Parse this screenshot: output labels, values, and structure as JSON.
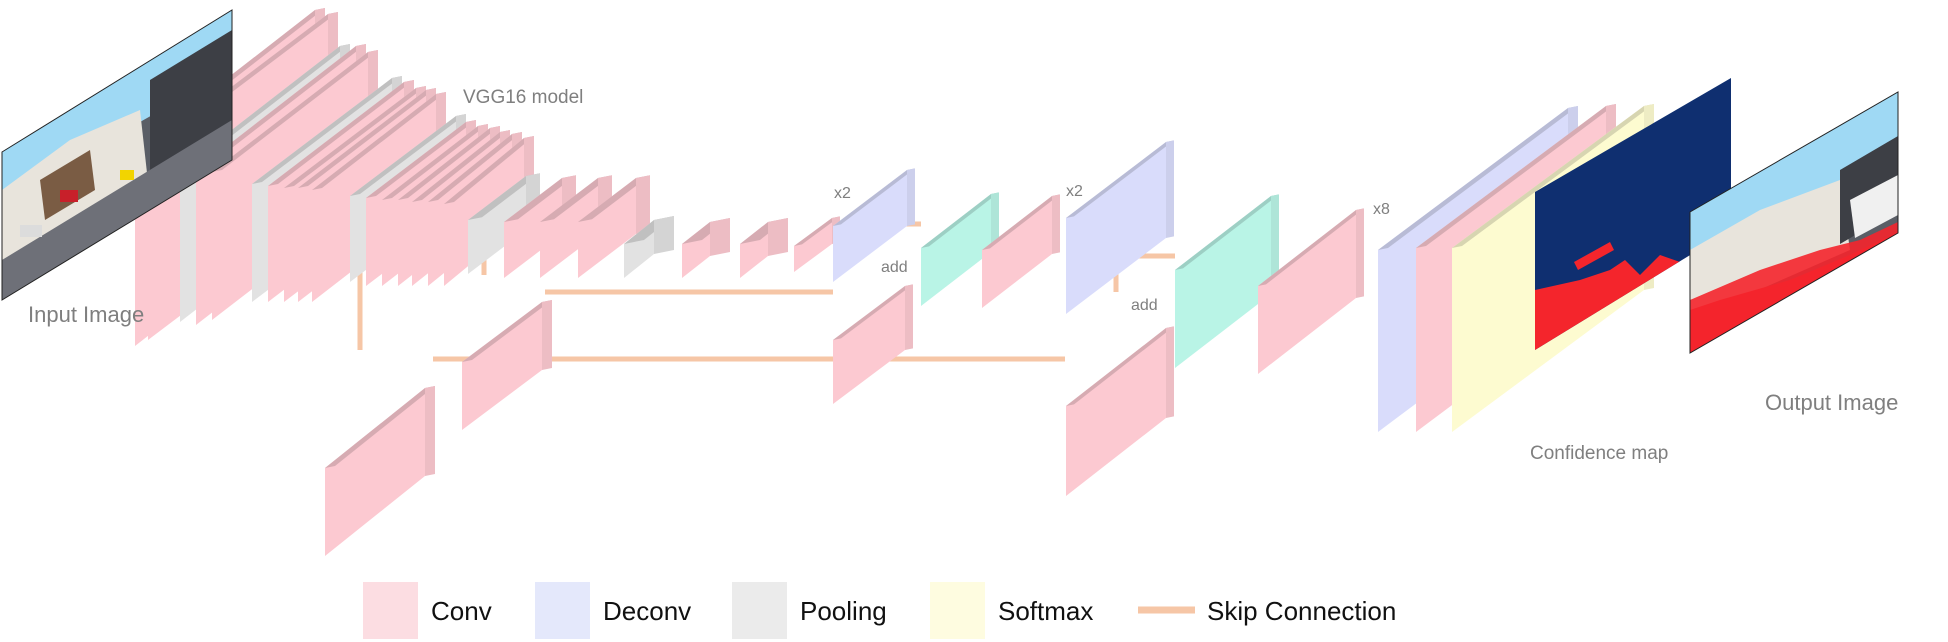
{
  "labels": {
    "input": "Input Image",
    "model": "VGG16 model",
    "output": "Output Image",
    "confidence": "Confidence map",
    "x2_a": "x2",
    "x2_b": "x2",
    "x8": "x8",
    "add_a": "add",
    "add_b": "add"
  },
  "legend": [
    {
      "label": "Conv",
      "color": "#fcdde2"
    },
    {
      "label": "Deconv",
      "color": "#e4e8fb"
    },
    {
      "label": "Pooling",
      "color": "#ebebeb"
    },
    {
      "label": "Softmax",
      "color": "#fefce0"
    },
    {
      "label": "Skip Connection",
      "color": "#f6c6a6"
    }
  ],
  "colors": {
    "conv": "#fcc9d1",
    "deconv": "#d9dcfb",
    "pooling": "#e2e2e2",
    "softmax": "#fdfbd0",
    "add": "#b9f4e6",
    "skip": "#f6c6a6",
    "confidence_bg": "#0f2f70",
    "road": "#f4252c",
    "text": "#7f7f7f"
  }
}
